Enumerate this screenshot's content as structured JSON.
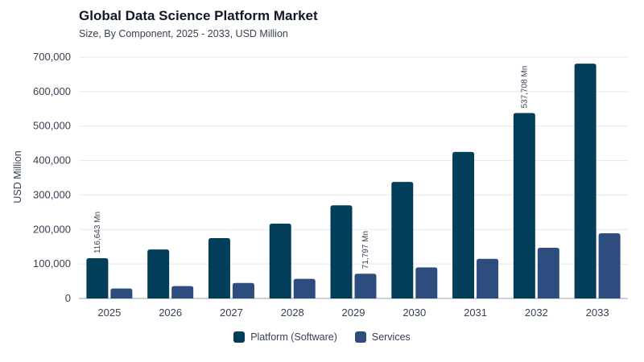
{
  "chart_data": {
    "type": "bar",
    "title": "Global Data Science Platform Market",
    "subtitle": "Size, By Component, 2025 - 2033, USD Million",
    "ylabel": "USD Million",
    "xlabel": "",
    "ylim": [
      0,
      700000
    ],
    "yticks": [
      0,
      100000,
      200000,
      300000,
      400000,
      500000,
      600000,
      700000
    ],
    "ytick_labels": [
      "0",
      "100,000",
      "200,000",
      "300,000",
      "400,000",
      "500,000",
      "600,000",
      "700,000"
    ],
    "grid": true,
    "legend_position": "bottom-center",
    "categories": [
      "2025",
      "2026",
      "2027",
      "2028",
      "2029",
      "2030",
      "2031",
      "2032",
      "2033"
    ],
    "series": [
      {
        "name": "Platform (Software)",
        "color": "#023E5A",
        "values": [
          116643,
          142000,
          175000,
          217000,
          270000,
          338000,
          425000,
          537708,
          681000
        ]
      },
      {
        "name": "Services",
        "color": "#2E4D7F",
        "values": [
          29000,
          36000,
          45000,
          57000,
          71797,
          90000,
          115000,
          147000,
          189000
        ]
      }
    ],
    "annotations": [
      {
        "series": 0,
        "category": "2025",
        "text": "116,643 Mn"
      },
      {
        "series": 1,
        "category": "2029",
        "text": "71,797 Mn"
      },
      {
        "series": 0,
        "category": "2032",
        "text": "537,708 Mn"
      }
    ]
  }
}
